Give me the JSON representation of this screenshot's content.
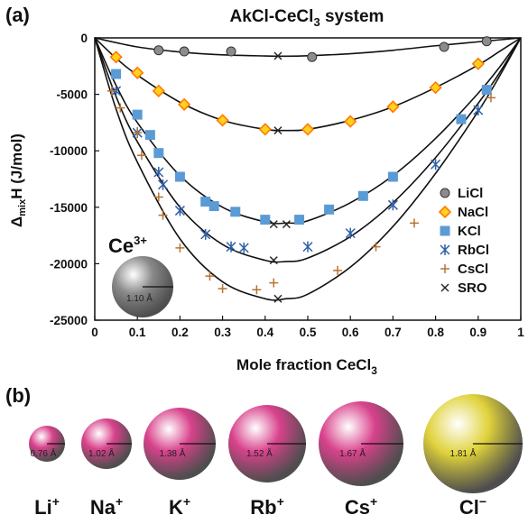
{
  "panels": {
    "a": "(a)",
    "b": "(b)"
  },
  "chart_data": {
    "type": "scatter",
    "title": {
      "main": "AkCl-CeCl",
      "sub": "3",
      "rest": " system"
    },
    "xlabel": {
      "main": "Mole fraction CeCl",
      "sub": "3"
    },
    "ylabel": {
      "pre": "Δ",
      "sub": "mix",
      "post": "H (J/mol)"
    },
    "xlim": [
      0,
      1
    ],
    "ylim": [
      -25000,
      0
    ],
    "x_ticks": [
      "0",
      "0.1",
      "0.2",
      "0.3",
      "0.4",
      "0.5",
      "0.6",
      "0.7",
      "0.8",
      "0.9",
      "1"
    ],
    "y_ticks": [
      "0",
      "-5000",
      "-10000",
      "-15000",
      "-20000",
      "-25000"
    ],
    "legend_position": "right",
    "series": [
      {
        "name": "LiCl",
        "marker": "circle",
        "color": "#8c8c8c",
        "x": [
          0.15,
          0.21,
          0.32,
          0.51,
          0.82,
          0.92
        ],
        "y": [
          -1100,
          -1200,
          -1200,
          -1700,
          -800,
          -300
        ]
      },
      {
        "name": "NaCl",
        "marker": "diamond",
        "color": "#ff7a00",
        "x": [
          0.05,
          0.1,
          0.15,
          0.21,
          0.3,
          0.4,
          0.5,
          0.6,
          0.7,
          0.8,
          0.9
        ],
        "y": [
          -1700,
          -3100,
          -4700,
          -5900,
          -7300,
          -8100,
          -8100,
          -7400,
          -6100,
          -4400,
          -2300
        ]
      },
      {
        "name": "KCl",
        "marker": "square",
        "color": "#5b9bd5",
        "x": [
          0.05,
          0.1,
          0.13,
          0.15,
          0.2,
          0.26,
          0.28,
          0.33,
          0.4,
          0.48,
          0.55,
          0.63,
          0.7,
          0.86,
          0.92
        ],
        "y": [
          -3200,
          -6800,
          -8600,
          -10200,
          -12300,
          -14500,
          -14900,
          -15400,
          -16100,
          -16100,
          -15200,
          -14000,
          -12300,
          -7200,
          -4600
        ]
      },
      {
        "name": "RbCl",
        "marker": "asterisk",
        "color": "#2e5fa8",
        "x": [
          0.05,
          0.1,
          0.15,
          0.16,
          0.2,
          0.26,
          0.32,
          0.35,
          0.5,
          0.6,
          0.7,
          0.8,
          0.9
        ],
        "y": [
          -4700,
          -8400,
          -11900,
          -13000,
          -15300,
          -17400,
          -18500,
          -18600,
          -18500,
          -17300,
          -14800,
          -11200,
          -6400
        ]
      },
      {
        "name": "CsCl",
        "marker": "plus",
        "color": "#b87333",
        "x": [
          0.04,
          0.06,
          0.1,
          0.11,
          0.15,
          0.16,
          0.2,
          0.27,
          0.3,
          0.38,
          0.42,
          0.57,
          0.66,
          0.75,
          0.93
        ],
        "y": [
          -4700,
          -6200,
          -8400,
          -10400,
          -14100,
          -15700,
          -18600,
          -21100,
          -22200,
          -22300,
          -21700,
          -20600,
          -18500,
          -16400,
          -5300
        ]
      },
      {
        "name": "SRO",
        "marker": "x",
        "color": "#222222",
        "x": [
          0.43,
          0.43,
          0.45,
          0.42,
          0.43,
          0.42
        ],
        "y": [
          -1600,
          -8200,
          -16500,
          -19700,
          -23100,
          -16500
        ]
      }
    ],
    "curves": [
      {
        "series": "LiCl",
        "x": [
          0,
          0.1,
          0.2,
          0.3,
          0.4,
          0.45,
          0.5,
          0.6,
          0.7,
          0.8,
          0.9,
          1
        ],
        "y": [
          0,
          -800,
          -1250,
          -1500,
          -1600,
          -1620,
          -1580,
          -1400,
          -1100,
          -700,
          -350,
          0
        ]
      },
      {
        "series": "NaCl",
        "x": [
          0,
          0.05,
          0.1,
          0.2,
          0.3,
          0.4,
          0.45,
          0.5,
          0.6,
          0.7,
          0.8,
          0.9,
          0.95,
          1
        ],
        "y": [
          0,
          -1800,
          -3300,
          -5700,
          -7300,
          -8100,
          -8200,
          -8100,
          -7300,
          -6100,
          -4400,
          -2400,
          -1200,
          0
        ]
      },
      {
        "series": "KCl",
        "x": [
          0,
          0.05,
          0.1,
          0.2,
          0.3,
          0.4,
          0.45,
          0.5,
          0.6,
          0.7,
          0.8,
          0.9,
          0.95,
          1
        ],
        "y": [
          0,
          -4200,
          -7500,
          -12200,
          -15000,
          -16300,
          -16400,
          -16200,
          -14600,
          -12200,
          -8900,
          -4900,
          -2600,
          0
        ]
      },
      {
        "series": "RbCl",
        "x": [
          0,
          0.05,
          0.1,
          0.2,
          0.3,
          0.4,
          0.45,
          0.5,
          0.6,
          0.7,
          0.8,
          0.9,
          0.95,
          1
        ],
        "y": [
          0,
          -5200,
          -9200,
          -15000,
          -18300,
          -19700,
          -19800,
          -19500,
          -17600,
          -14600,
          -10600,
          -5800,
          -3100,
          0
        ]
      },
      {
        "series": "CsCl",
        "x": [
          0,
          0.05,
          0.1,
          0.2,
          0.3,
          0.4,
          0.45,
          0.5,
          0.6,
          0.7,
          0.8,
          0.9,
          0.95,
          1
        ],
        "y": [
          0,
          -6300,
          -11000,
          -17800,
          -21600,
          -23100,
          -23100,
          -22700,
          -20300,
          -16700,
          -12000,
          -6500,
          -3400,
          0
        ]
      }
    ],
    "inset": {
      "ion": "Ce",
      "charge": "3+",
      "radius": "1.10 Å",
      "color": "#8a8a8a"
    }
  },
  "ions": [
    {
      "name": "Li",
      "charge": "+",
      "radius": "0.76 Å",
      "color": "#d9428c"
    },
    {
      "name": "Na",
      "charge": "+",
      "radius": "1.02 Å",
      "color": "#d9428c"
    },
    {
      "name": "K",
      "charge": "+",
      "radius": "1.38 Å",
      "color": "#d9428c"
    },
    {
      "name": "Rb",
      "charge": "+",
      "radius": "1.52 Å",
      "color": "#d9428c"
    },
    {
      "name": "Cs",
      "charge": "+",
      "radius": "1.67 Å",
      "color": "#d9428c"
    },
    {
      "name": "Cl",
      "charge": "−",
      "radius": "1.81 Å",
      "color": "#e0d23a"
    }
  ]
}
